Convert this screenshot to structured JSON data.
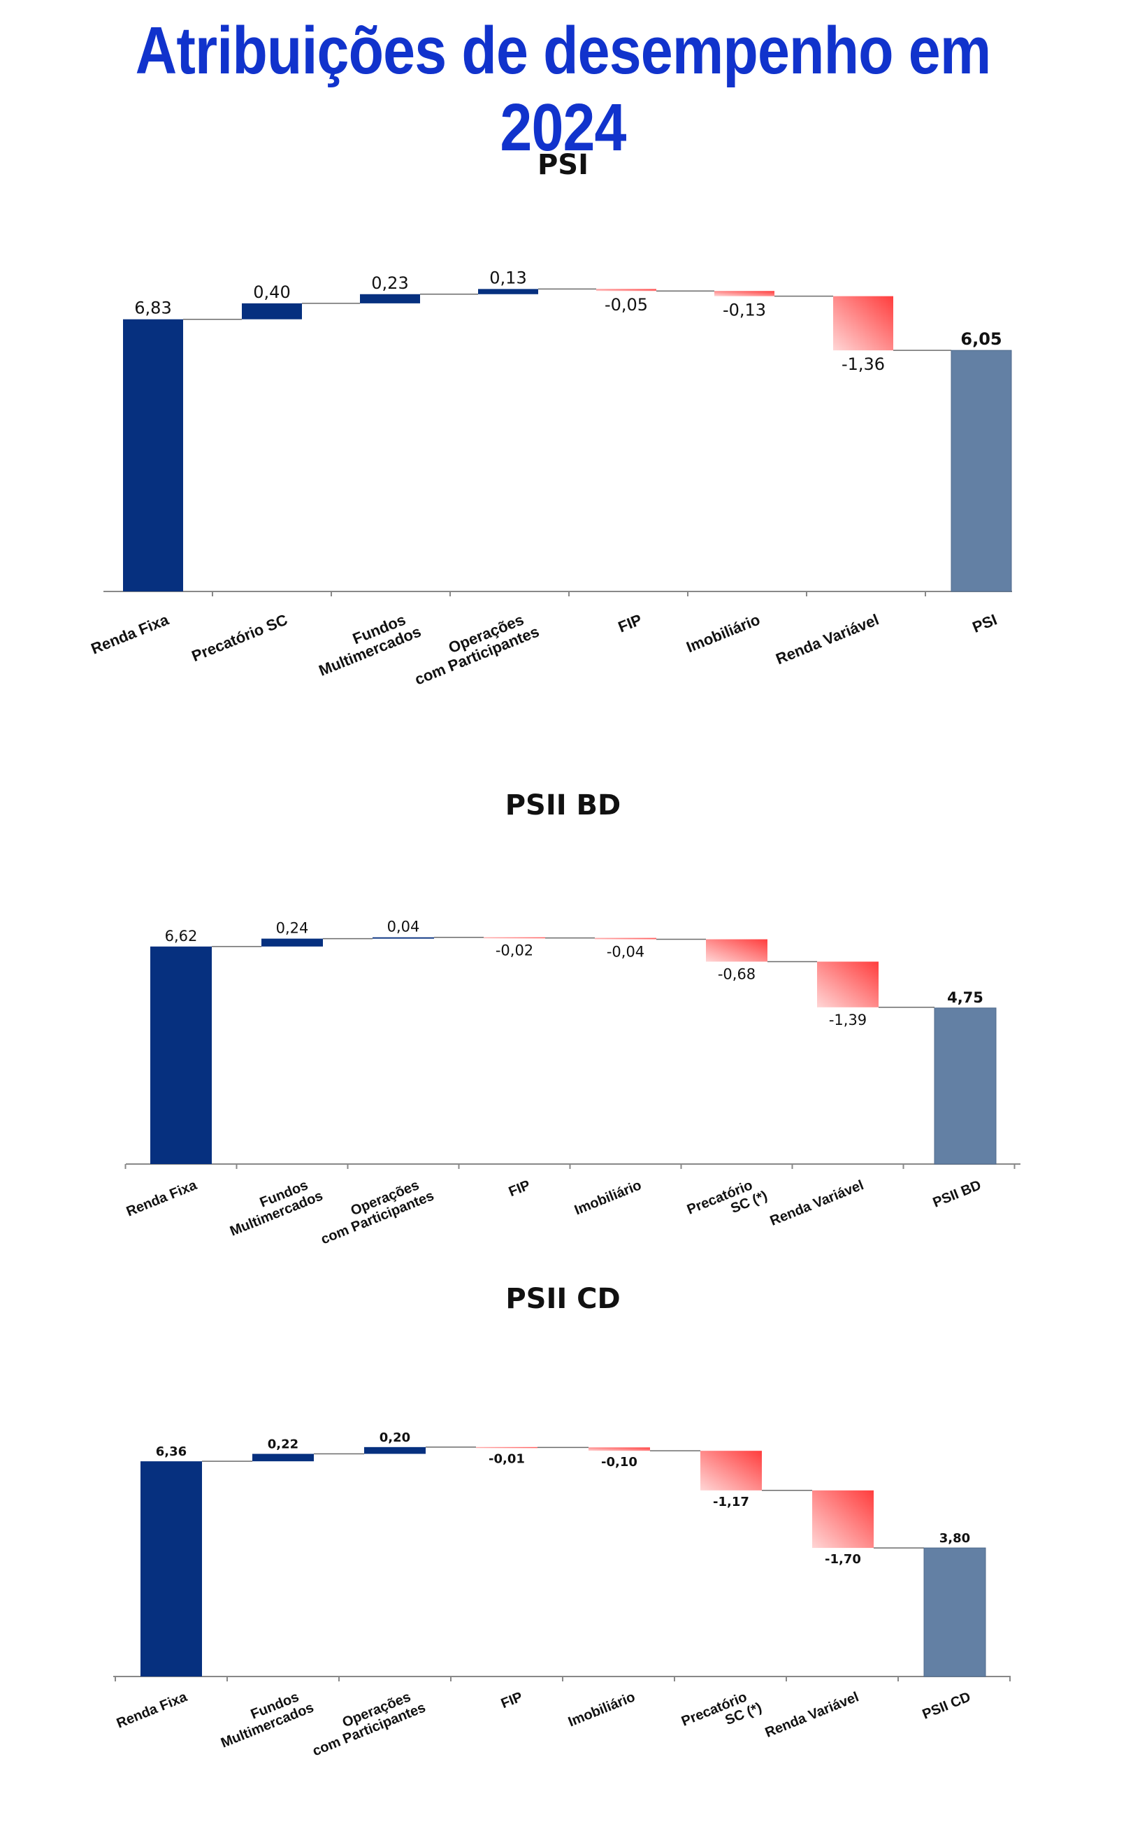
{
  "page": {
    "title": "Atribuições de desempenho em 2024"
  },
  "colors": {
    "positive": "#06307f",
    "total": "#6380a4",
    "negative_light": "#ffd6d6",
    "negative_dark": "#ff3d3d",
    "connector": "#6b6b6b",
    "title": "#1133cc"
  },
  "chart_data": [
    {
      "type": "waterfall",
      "title": "PSI",
      "categories": [
        "Renda Fixa",
        "Precatório SC",
        "Fundos Multimercados",
        "Operações com Participantes",
        "FIP",
        "Imobiliário",
        "Renda Variável",
        "PSI"
      ],
      "values": [
        6.83,
        0.4,
        0.23,
        0.13,
        -0.05,
        -0.13,
        -1.36,
        6.05
      ],
      "labels": [
        "6,83",
        "0,40",
        "0,23",
        "0,13",
        "-0,05",
        "-0,13",
        "-1,36",
        "6,05"
      ],
      "total_index": 7,
      "xlabel": "",
      "ylabel": ""
    },
    {
      "type": "waterfall",
      "title": "PSII BD",
      "categories": [
        "Renda Fixa",
        "Fundos Multimercados",
        "Operações com Participantes",
        "FIP",
        "Imobiliário",
        "Precatório SC (*)",
        "Renda Variável",
        "PSII BD"
      ],
      "values": [
        6.62,
        0.24,
        0.04,
        -0.02,
        -0.04,
        -0.68,
        -1.39,
        4.75
      ],
      "labels": [
        "6,62",
        "0,24",
        "0,04",
        "-0,02",
        "-0,04",
        "-0,68",
        "-1,39",
        "4,75"
      ],
      "total_index": 7,
      "xlabel": "",
      "ylabel": ""
    },
    {
      "type": "waterfall",
      "title": "PSII CD",
      "categories": [
        "Renda Fixa",
        "Fundos Multimercados",
        "Operações com Participantes",
        "FIP",
        "Imobiliário",
        "Precatório SC (*)",
        "Renda Variável",
        "PSII CD"
      ],
      "values": [
        6.36,
        0.22,
        0.2,
        -0.01,
        -0.1,
        -1.17,
        -1.7,
        3.8
      ],
      "labels": [
        "6,36",
        "0,22",
        "0,20",
        "-0,01",
        "-0,10",
        "-1,17",
        "-1,70",
        "3,80"
      ],
      "total_index": 7,
      "xlabel": "",
      "ylabel": ""
    }
  ]
}
